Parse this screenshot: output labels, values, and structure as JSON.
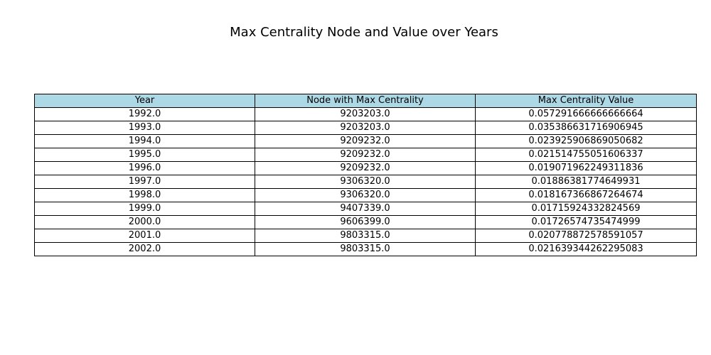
{
  "chart_data": {
    "type": "table",
    "title": "Max Centrality Node and Value over Years",
    "header_color": "#add8e6",
    "columns": [
      "Year",
      "Node with Max Centrality",
      "Max Centrality Value"
    ],
    "rows": [
      [
        "1992.0",
        "9203203.0",
        "0.057291666666666664"
      ],
      [
        "1993.0",
        "9203203.0",
        "0.035386631716906945"
      ],
      [
        "1994.0",
        "9209232.0",
        "0.023925906869050682"
      ],
      [
        "1995.0",
        "9209232.0",
        "0.021514755051606337"
      ],
      [
        "1996.0",
        "9209232.0",
        "0.019071962249311836"
      ],
      [
        "1997.0",
        "9306320.0",
        "0.01886381774649931"
      ],
      [
        "1998.0",
        "9306320.0",
        "0.018167366867264674"
      ],
      [
        "1999.0",
        "9407339.0",
        "0.01715924332824569"
      ],
      [
        "2000.0",
        "9606399.0",
        "0.01726574735474999"
      ],
      [
        "2001.0",
        "9803315.0",
        "0.020778872578591057"
      ],
      [
        "2002.0",
        "9803315.0",
        "0.021639344262295083"
      ]
    ]
  }
}
